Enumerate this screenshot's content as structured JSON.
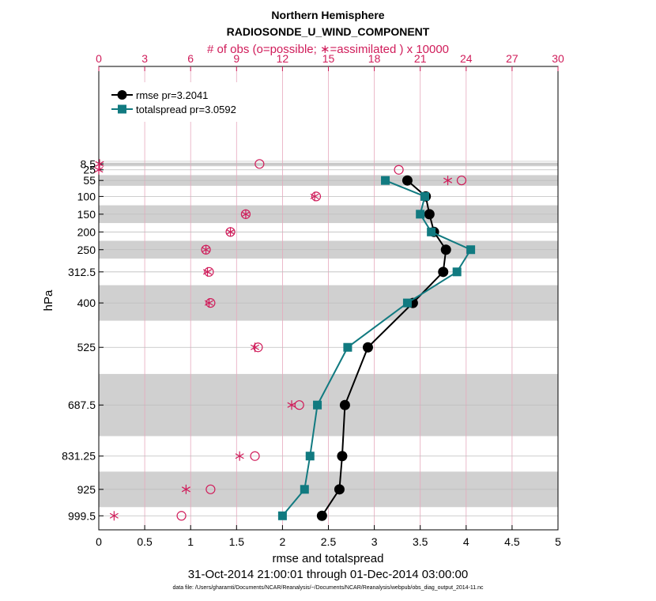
{
  "chart_data": {
    "type": "line",
    "title": "Northern Hemisphere",
    "subtitle": "RADIOSONDE_U_WIND_COMPONENT",
    "top_axis_label": "# of obs (o=possible; ∗=assimilated ) x 10000",
    "xlabel": "rmse and totalspread",
    "ylabel": "hPa",
    "date_range": "31-Oct-2014 21:00:01 through 01-Dec-2014 03:00:00",
    "footnote": "data file: /Users/gharamti/Documents/NCAR/Reanalysis/~/Documents/NCAR/Reanalysis/webpub/obs_diag_output_2014-11.nc",
    "xlim": [
      0,
      5
    ],
    "xticks": [
      "0",
      "0.5",
      "1",
      "1.5",
      "2",
      "2.5",
      "3",
      "3.5",
      "4",
      "4.5",
      "5"
    ],
    "top_xlim": [
      0,
      30
    ],
    "top_xticks": [
      "0",
      "3",
      "6",
      "9",
      "12",
      "15",
      "18",
      "21",
      "24",
      "27",
      "30"
    ],
    "levels": [
      8.5,
      25,
      55,
      100,
      150,
      200,
      250,
      312.5,
      400,
      525,
      687.5,
      831.25,
      925,
      999.5
    ],
    "level_labels": [
      "8.5",
      "25",
      "55",
      "100",
      "150",
      "200",
      "250",
      "312.5",
      "400",
      "525",
      "687.5",
      "831.25",
      "925",
      "999.5"
    ],
    "shaded_bands_hPa": [
      [
        0,
        2
      ],
      [
        5,
        15
      ],
      [
        40,
        70
      ],
      [
        125,
        175
      ],
      [
        225,
        275
      ],
      [
        350,
        450
      ],
      [
        600,
        775
      ],
      [
        875,
        975
      ]
    ],
    "series": [
      {
        "name": "rmse pr=3.2041",
        "color": "#000000",
        "marker": "circle",
        "levels": [
          55,
          100,
          150,
          200,
          250,
          312.5,
          400,
          525,
          687.5,
          831.25,
          925,
          999.5
        ],
        "values": [
          3.36,
          3.56,
          3.6,
          3.65,
          3.78,
          3.75,
          3.42,
          2.93,
          2.68,
          2.65,
          2.62,
          2.43
        ]
      },
      {
        "name": "totalspread pr=3.0592",
        "color": "#117a80",
        "marker": "square",
        "levels": [
          55,
          100,
          150,
          200,
          250,
          312.5,
          400,
          525,
          687.5,
          831.25,
          925,
          999.5
        ],
        "values": [
          3.12,
          3.55,
          3.5,
          3.62,
          4.05,
          3.9,
          3.36,
          2.71,
          2.38,
          2.3,
          2.24,
          2.0
        ]
      }
    ],
    "obs_possible": {
      "levels": [
        8.5,
        25,
        55,
        100,
        150,
        200,
        250,
        312.5,
        400,
        525,
        687.5,
        831.25,
        925,
        999.5
      ],
      "values": [
        10.5,
        19.6,
        23.7,
        14.2,
        9.6,
        8.6,
        7.0,
        7.2,
        7.3,
        10.4,
        13.1,
        10.2,
        7.3,
        5.4
      ]
    },
    "obs_assimilated": {
      "levels": [
        8.5,
        25,
        55,
        100,
        150,
        200,
        250,
        312.5,
        400,
        525,
        687.5,
        831.25,
        925,
        999.5
      ],
      "values": [
        0.05,
        0.0,
        22.8,
        14.1,
        9.6,
        8.6,
        7.0,
        7.1,
        7.2,
        10.2,
        12.6,
        9.2,
        5.7,
        1.0
      ]
    }
  },
  "colors": {
    "rmse": "#000000",
    "spread": "#117a80",
    "obs": "#d01c5a",
    "band": "#d0d0d0"
  }
}
